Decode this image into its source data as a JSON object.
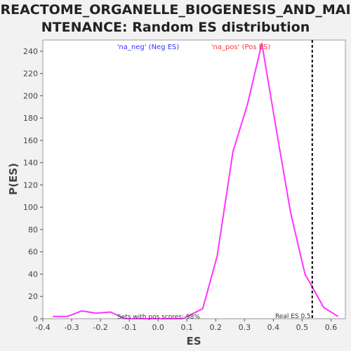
{
  "chart_data": {
    "type": "line",
    "title_line1": "REACTOME_ORGANELLE_BIOGENESIS_AND_MAI",
    "title_line2": "NTENANCE: Random ES distribution",
    "xlabel": "ES",
    "ylabel": "P(ES)",
    "xlim": [
      -0.4,
      0.65
    ],
    "ylim": [
      0,
      250
    ],
    "x_ticks": [
      -0.4,
      -0.3,
      -0.2,
      -0.1,
      0.0,
      0.1,
      0.2,
      0.3,
      0.4,
      0.5,
      0.6
    ],
    "x_tick_labels": [
      "-0.4",
      "-0.3",
      "-0.2",
      "-0.1",
      "0.0",
      "0.1",
      "0.2",
      "0.3",
      "0.4",
      "0.5",
      "0.6"
    ],
    "y_ticks": [
      0,
      20,
      40,
      60,
      80,
      100,
      120,
      140,
      160,
      180,
      200,
      220,
      240
    ],
    "y_tick_labels": [
      "0",
      "20",
      "40",
      "60",
      "80",
      "100",
      "120",
      "140",
      "160",
      "180",
      "200",
      "220",
      "240"
    ],
    "grid": false,
    "legend": [
      {
        "label": "'na_neg' (Neg ES)",
        "color": "#3333ff"
      },
      {
        "label": "'na_pos' (Pos ES)",
        "color": "#ff3333"
      }
    ],
    "series": [
      {
        "color": "#ff33ff",
        "x": [
          -0.365,
          -0.315,
          -0.265,
          -0.215,
          -0.165,
          -0.115,
          -0.065,
          -0.015,
          0.035,
          0.085,
          0.155,
          0.205,
          0.26,
          0.31,
          0.36,
          0.41,
          0.46,
          0.51,
          0.575,
          0.625
        ],
        "y": [
          2,
          2,
          7,
          5,
          6,
          0,
          0,
          0,
          0,
          0,
          9,
          56,
          150,
          192,
          247,
          170,
          95,
          40,
          10,
          2
        ]
      }
    ],
    "real_es": {
      "x": 0.535,
      "label": "Real ES 0.5"
    },
    "annotation": "Sets with pos scores: 98%"
  }
}
